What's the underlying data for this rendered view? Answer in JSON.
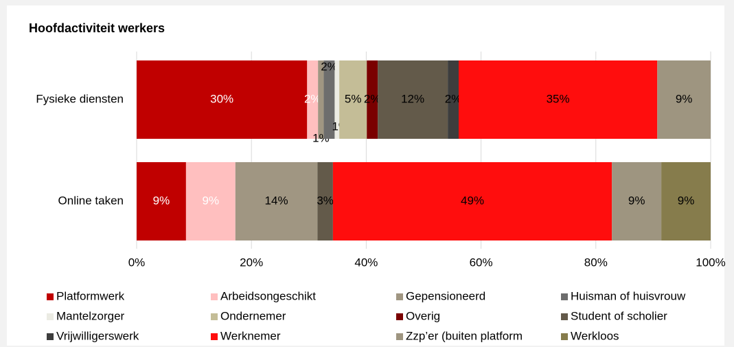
{
  "chart_data": {
    "type": "stacked_bar_horizontal",
    "title": "Hoofdactiviteit werkers",
    "categories": [
      "Fysieke diensten",
      "Online taken"
    ],
    "xlim": [
      0,
      100
    ],
    "xticks": [
      {
        "value": 0,
        "label": "0%"
      },
      {
        "value": 20,
        "label": "20%"
      },
      {
        "value": 40,
        "label": "40%"
      },
      {
        "value": 60,
        "label": "60%"
      },
      {
        "value": 80,
        "label": "80%"
      },
      {
        "value": 100,
        "label": "100%"
      }
    ],
    "grid": true,
    "series": [
      {
        "name": "Platformwerk",
        "color": "#c00000",
        "label_color": "#ffffff",
        "values": [
          29.7,
          8.6
        ],
        "value_labels": [
          "30%",
          "9%"
        ]
      },
      {
        "name": "Arbeidsongeschikt",
        "color": "#ffbfbf",
        "label_color": "#ffffff",
        "values": [
          1.9,
          8.6
        ],
        "value_labels": [
          "2%",
          "9%"
        ]
      },
      {
        "name": "Gepensioneerd",
        "color": "#a09682",
        "label_color": "#000000",
        "values": [
          1,
          14.3
        ],
        "value_labels": [
          "1%",
          "14%"
        ]
      },
      {
        "name": "Huisman of huisvrouw",
        "color": "#6d6d6d",
        "label_color": "#000000",
        "values": [
          1.9,
          0
        ],
        "value_labels": [
          "2%",
          null
        ]
      },
      {
        "name": "Mantelzorger",
        "color": "#ebebe3",
        "label_color": "#000000",
        "values": [
          0.8,
          0
        ],
        "value_labels": [
          "1%",
          null
        ]
      },
      {
        "name": "Ondernemer",
        "color": "#c4bd97",
        "label_color": "#000000",
        "values": [
          4.8,
          0
        ],
        "value_labels": [
          "5%",
          null
        ]
      },
      {
        "name": "Overig",
        "color": "#7a0000",
        "label_color": "#000000",
        "values": [
          1.9,
          0
        ],
        "value_labels": [
          "2%",
          null
        ]
      },
      {
        "name": "Student of scholier",
        "color": "#635a4a",
        "label_color": "#000000",
        "values": [
          12.2,
          2.7
        ],
        "value_labels": [
          "12%",
          "3%"
        ]
      },
      {
        "name": "Vrijwilligerswerk",
        "color": "#3d3d3d",
        "label_color": "#000000",
        "values": [
          1.9,
          0
        ],
        "value_labels": [
          "2%",
          null
        ]
      },
      {
        "name": "Werknemer",
        "color": "#ff0d0d",
        "label_color": "#000000",
        "values": [
          34.6,
          48.6
        ],
        "value_labels": [
          "35%",
          "49%"
        ]
      },
      {
        "name": "Zzp’er (buiten platform",
        "color": "#9e9580",
        "label_color": "#000000",
        "values": [
          9.3,
          8.6
        ],
        "value_labels": [
          "9%",
          "9%"
        ]
      },
      {
        "name": "Werkloos",
        "color": "#867c4c",
        "label_color": "#000000",
        "values": [
          0,
          8.6
        ],
        "value_labels": [
          null,
          "9%"
        ]
      }
    ]
  }
}
